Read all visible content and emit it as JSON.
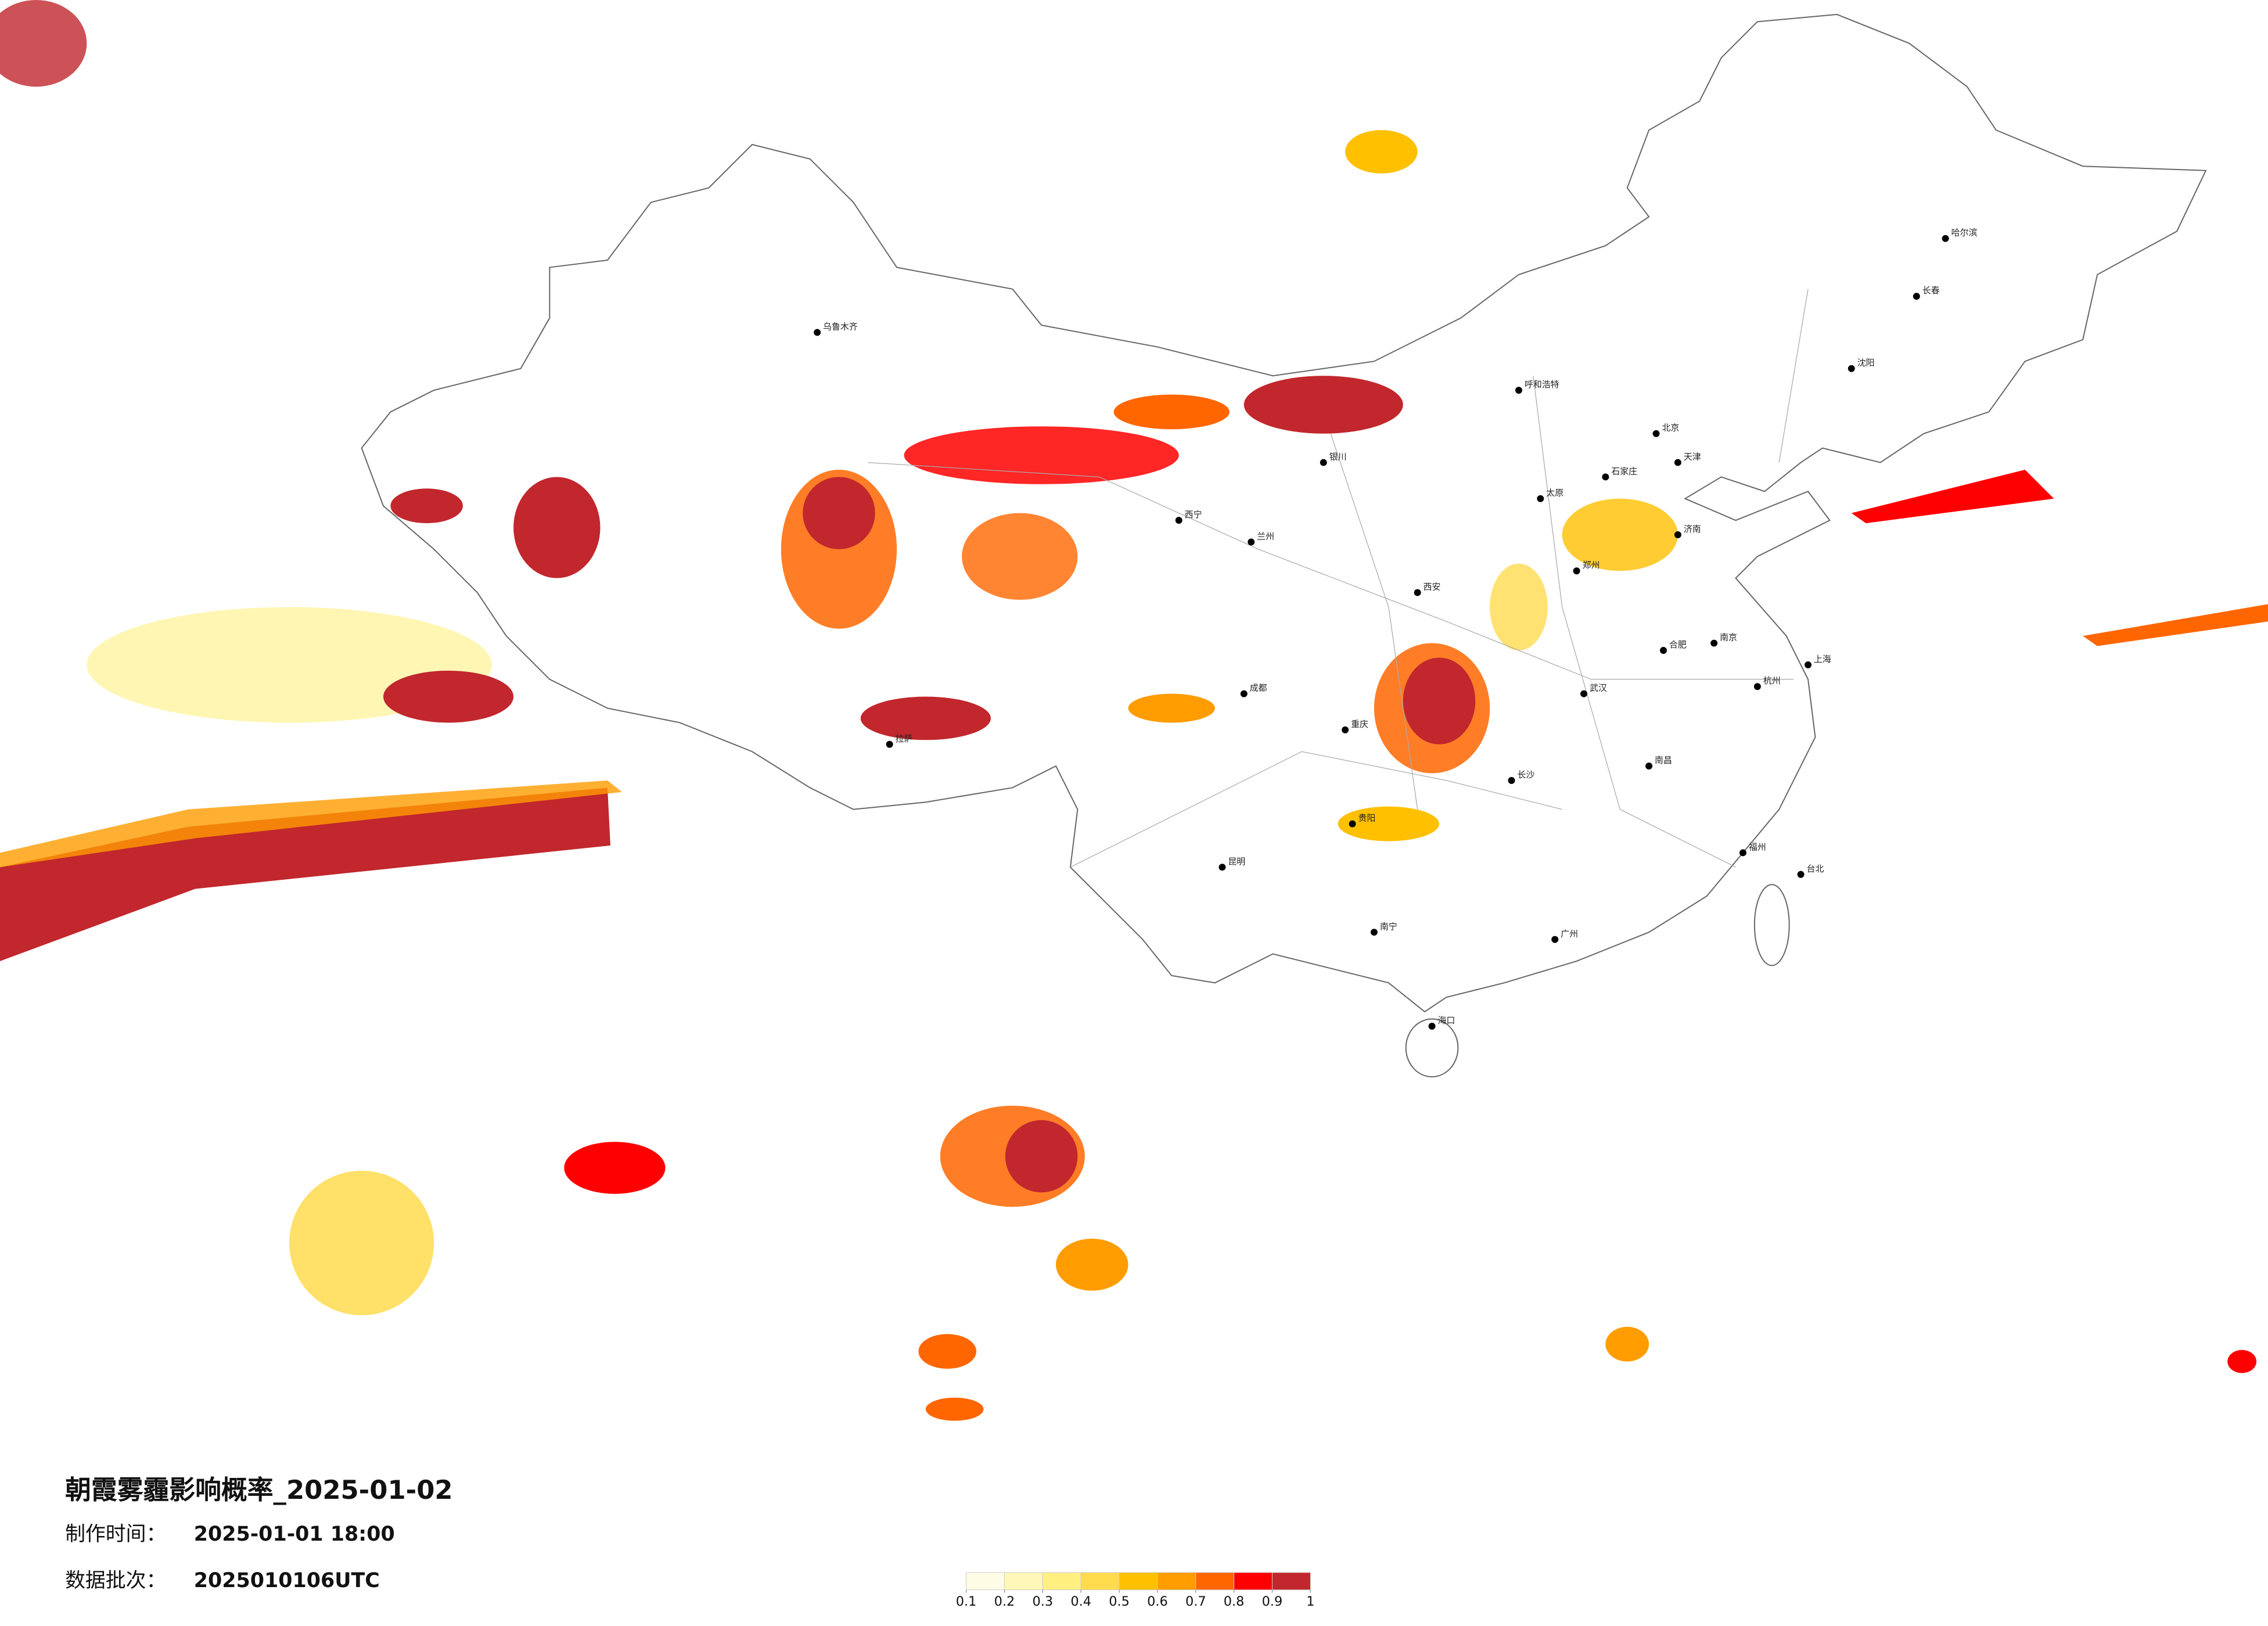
{
  "header": {
    "title": "朝霞雾霾影响概率_2025-01-02",
    "made_label": "制作时间：",
    "made_value": "2025-01-01 18:00",
    "batch_label": "数据批次：",
    "batch_value": "2025010106UTC"
  },
  "legend": {
    "ticks": [
      0.1,
      0.2,
      0.3,
      0.4,
      0.5,
      0.6,
      0.7,
      0.8,
      0.9,
      1
    ],
    "colors": [
      "#fffce6",
      "#fff7b8",
      "#fff080",
      "#ffdb4d",
      "#ffc000",
      "#ff9c00",
      "#ff6600",
      "#ff0000",
      "#c1272d"
    ]
  },
  "cities": [
    "北京",
    "天津",
    "石家庄",
    "太原",
    "呼和浩特",
    "沈阳",
    "长春",
    "哈尔滨",
    "济南",
    "郑州",
    "西安",
    "兰州",
    "西宁",
    "银川",
    "乌鲁木齐",
    "拉萨",
    "成都",
    "重庆",
    "贵阳",
    "昆明",
    "南宁",
    "广州",
    "长沙",
    "武汉",
    "南昌",
    "福州",
    "杭州",
    "南京",
    "合肥",
    "上海",
    "海口",
    "台北"
  ]
}
